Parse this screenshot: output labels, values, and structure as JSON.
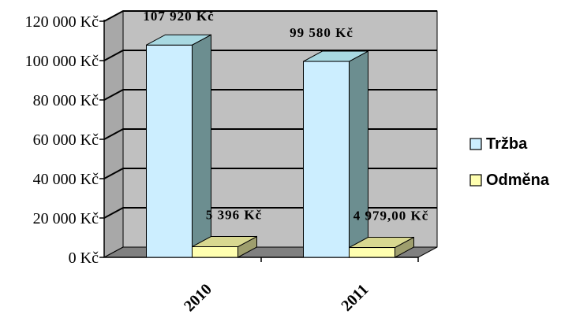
{
  "chart_data": {
    "type": "bar",
    "categories": [
      "2010",
      "2011"
    ],
    "series": [
      {
        "name": "Tržba",
        "values": [
          107920,
          99580
        ],
        "labels": [
          "107 920 Kč",
          "99 580 Kč"
        ],
        "color": "#cceeff"
      },
      {
        "name": "Odměna",
        "values": [
          5396,
          4979
        ],
        "labels": [
          "5 396 Kč",
          "4 979,00 Kč"
        ],
        "color": "#ffffb0"
      }
    ],
    "ylim": [
      0,
      120000
    ],
    "yticks": [
      0,
      20000,
      40000,
      60000,
      80000,
      100000,
      120000
    ],
    "ytick_labels": [
      "0 Kč",
      "20 000 Kč",
      "40 000 Kč",
      "60 000 Kč",
      "80 000 Kč",
      "100 000 Kč",
      "120 000 Kč"
    ],
    "grid": true,
    "three_d": true,
    "legend_position": "right",
    "colors": {
      "wall": "#c0c0c0",
      "floor": "#808080",
      "grid": "#000000"
    }
  }
}
